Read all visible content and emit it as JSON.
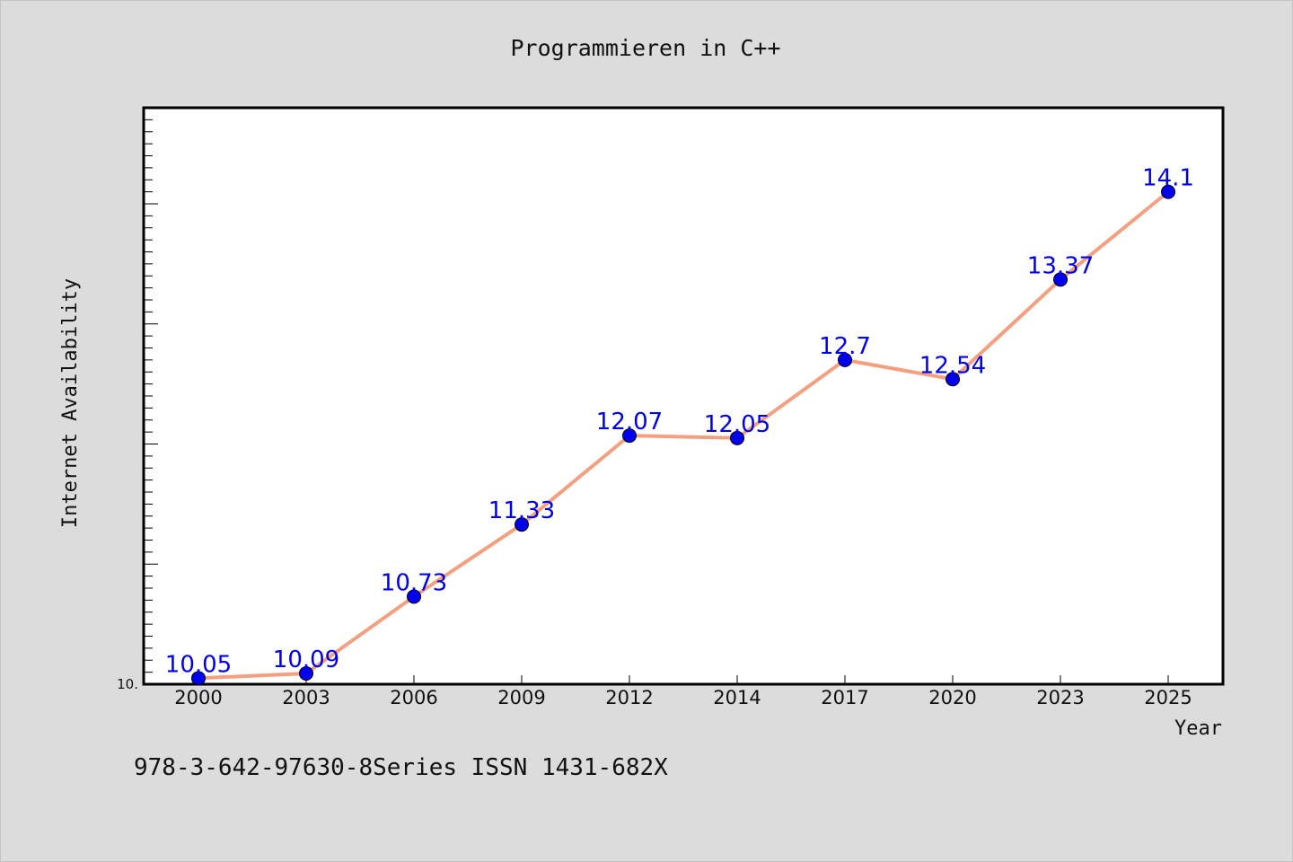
{
  "chart_data": {
    "type": "line",
    "title": "Programmieren in C++",
    "xlabel": "Year",
    "ylabel": "Internet Availability",
    "categories": [
      "2000",
      "2003",
      "2006",
      "2009",
      "2012",
      "2014",
      "2017",
      "2020",
      "2023",
      "2025"
    ],
    "series": [
      {
        "values": [
          10.05,
          10.09,
          10.73,
          11.33,
          12.07,
          12.05,
          12.7,
          12.54,
          13.37,
          14.1
        ],
        "data_labels": [
          "10.05",
          "10.09",
          "10.73",
          "11.33",
          "12.07",
          "12.05",
          "12.7",
          "12.54",
          "13.37",
          "14.1"
        ],
        "line_color": "#f4a080",
        "marker_color": "#0000ee",
        "label_color": "#0000ee"
      }
    ],
    "ylim": [
      10.0,
      14.8
    ],
    "y_tick_labels": [
      "10."
    ],
    "grid": false,
    "legend": "none"
  },
  "footer": {
    "text": "978-3-642-97630-8Series ISSN 1431-682X"
  },
  "colors": {
    "background": "#dcdcdc",
    "plot_background": "#ffffff",
    "axis": "#000000",
    "text": "#111111"
  }
}
